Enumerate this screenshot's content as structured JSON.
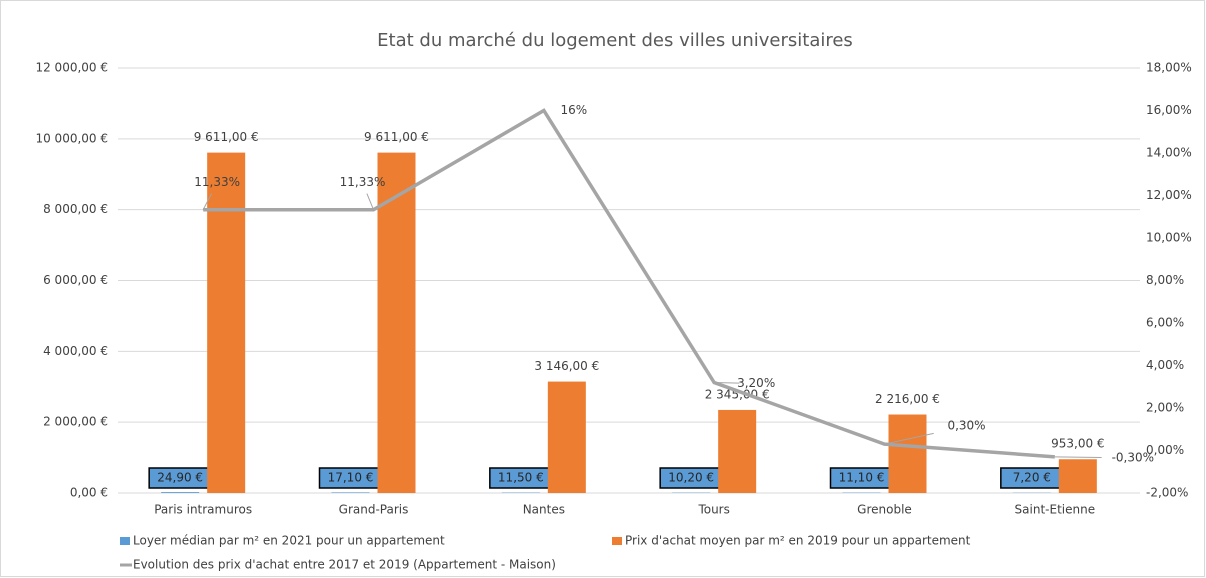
{
  "chart_data": {
    "type": "bar-line",
    "title": "Etat du marché du logement des villes universitaires",
    "categories": [
      "Paris intramuros",
      "Grand-Paris",
      "Nantes",
      "Tours",
      "Grenoble",
      "Saint-Etienne"
    ],
    "series": [
      {
        "name": "Loyer médian par m² en 2021 pour un appartement",
        "color": "#5b9bd5",
        "type": "bar",
        "values": [
          24.9,
          17.1,
          11.5,
          10.2,
          11.1,
          7.2
        ],
        "value_labels": [
          "24,90 €",
          "17,10 €",
          "11,50 €",
          "10,20 €",
          "11,10 €",
          "7,20 €"
        ]
      },
      {
        "name": "Prix  d'achat moyen par m² en 2019 pour un appartement",
        "color": "#ed7d31",
        "type": "bar",
        "values": [
          9611,
          9611,
          3146,
          2345,
          2216,
          953
        ],
        "value_labels": [
          "9 611,00 €",
          "9 611,00 €",
          "3 146,00 €",
          "2 345,00 €",
          "2 216,00 €",
          "953,00 €"
        ]
      },
      {
        "name": "Evolution des prix d'achat entre 2017 et 2019 (Appartement - Maison)",
        "color": "#a5a5a5",
        "type": "line",
        "axis": "y2",
        "values": [
          11.33,
          11.33,
          16,
          3.2,
          0.3,
          -0.3
        ],
        "value_labels": [
          "11,33%",
          "11,33%",
          "16%",
          "3,20%",
          "0,30%",
          "-0,30%"
        ]
      }
    ],
    "ylim": [
      0,
      12000
    ],
    "yticks": [
      {
        "value": 0,
        "label": "0,00 €"
      },
      {
        "value": 2000,
        "label": "2 000,00 €"
      },
      {
        "value": 4000,
        "label": "4 000,00 €"
      },
      {
        "value": 6000,
        "label": "6 000,00 €"
      },
      {
        "value": 8000,
        "label": "8 000,00 €"
      },
      {
        "value": 10000,
        "label": "10 000,00 €"
      },
      {
        "value": 12000,
        "label": "12 000,00 €"
      }
    ],
    "y2lim": [
      -2,
      18
    ],
    "y2ticks": [
      {
        "value": -2,
        "label": "-2,00%"
      },
      {
        "value": 0,
        "label": "0,00%"
      },
      {
        "value": 2,
        "label": "2,00%"
      },
      {
        "value": 4,
        "label": "4,00%"
      },
      {
        "value": 6,
        "label": "6,00%"
      },
      {
        "value": 8,
        "label": "8,00%"
      },
      {
        "value": 10,
        "label": "10,00%"
      },
      {
        "value": 12,
        "label": "12,00%"
      },
      {
        "value": 14,
        "label": "14,00%"
      },
      {
        "value": 16,
        "label": "16,00%"
      },
      {
        "value": 18,
        "label": "18,00%"
      }
    ],
    "grid": true
  }
}
